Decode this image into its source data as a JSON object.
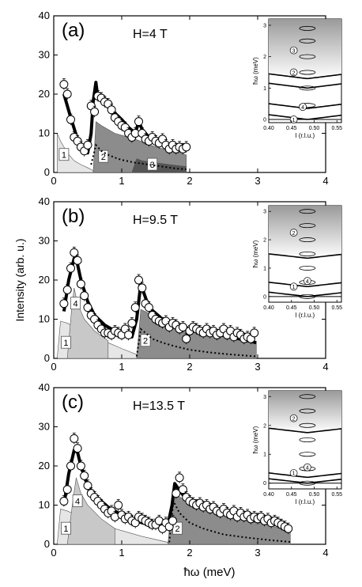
{
  "figure": {
    "xlabel": "ħω (meV)",
    "ylabel": "Intensity (arb. u.)"
  },
  "chart_data": [
    {
      "type": "scatter",
      "panel": "(a)",
      "field_label": "H=4 T",
      "xlabel": "ħω (meV)",
      "ylabel": "Intensity (arb. u.)",
      "xlim": [
        0,
        4
      ],
      "ylim": [
        0,
        40
      ],
      "xticks": [
        "0",
        "1",
        "2",
        "3",
        "4"
      ],
      "yticks": [
        "0",
        "10",
        "20",
        "30",
        "40"
      ],
      "data_points": {
        "x": [
          0.15,
          0.2,
          0.25,
          0.3,
          0.35,
          0.4,
          0.45,
          0.5,
          0.55,
          0.6,
          0.65,
          0.7,
          0.75,
          0.8,
          0.85,
          0.9,
          0.95,
          1.0,
          1.05,
          1.1,
          1.15,
          1.2,
          1.25,
          1.3,
          1.35,
          1.4,
          1.45,
          1.5,
          1.55,
          1.6,
          1.65,
          1.7,
          1.75,
          1.8,
          1.85,
          1.9,
          1.95
        ],
        "y": [
          22.5,
          20.0,
          13.5,
          9.0,
          8.0,
          6.5,
          5.5,
          7.0,
          17.0,
          15.5,
          19.5,
          19.0,
          18.0,
          17.5,
          16.0,
          14.0,
          13.0,
          12.0,
          11.5,
          10.0,
          9.0,
          10.0,
          13.0,
          10.0,
          8.5,
          8.0,
          9.0,
          8.0,
          7.5,
          8.5,
          7.0,
          6.0,
          7.0,
          6.0,
          6.5,
          6.0,
          6.5
        ]
      },
      "fit_curve": {
        "x": [
          0.15,
          0.25,
          0.35,
          0.45,
          0.5,
          0.55,
          0.58,
          0.62,
          0.65,
          0.75,
          0.85,
          1.0,
          1.1,
          1.2,
          1.25,
          1.3,
          1.4,
          1.55,
          1.7,
          1.85,
          1.95
        ],
        "y": [
          20.0,
          14.0,
          8.5,
          6.0,
          5.0,
          10.0,
          18.0,
          23.0,
          19.0,
          17.5,
          16.0,
          13.5,
          11.5,
          10.0,
          13.0,
          11.0,
          9.0,
          8.0,
          7.0,
          6.5,
          6.0
        ]
      },
      "dotted_curve": {
        "x": [
          0.55,
          0.62,
          0.7,
          0.8,
          0.9,
          1.0,
          1.2,
          1.4,
          1.6,
          1.8,
          1.95
        ],
        "y": [
          2.0,
          7.0,
          5.5,
          4.5,
          3.8,
          3.2,
          2.5,
          2.0,
          1.5,
          1.0,
          0.8
        ]
      },
      "bands": [
        {
          "label": "1",
          "x": [
            0.05,
            0.1,
            0.2,
            0.3,
            0.4,
            0.5,
            0.58
          ],
          "y": [
            10.0,
            8.0,
            5.0,
            3.0,
            2.0,
            1.2,
            0.5
          ],
          "color": "#e6e6e6"
        },
        {
          "label": "2",
          "x": [
            0.58,
            0.62,
            0.7,
            0.9,
            1.2,
            1.5,
            1.95
          ],
          "y": [
            0.0,
            13.0,
            12.0,
            10.0,
            8.5,
            6.5,
            4.5
          ],
          "color": "#8c8c8c"
        },
        {
          "label": "3",
          "x": [
            1.15,
            1.22,
            1.3,
            1.5,
            1.7,
            1.95
          ],
          "y": [
            0.0,
            3.5,
            3.0,
            2.5,
            2.0,
            1.5
          ],
          "color": "#555555"
        }
      ],
      "band_labels": [
        "1",
        "2",
        "3"
      ],
      "inset": {
        "xlabel": "l (r.l.u.)",
        "ylabel": "ħω (meV)",
        "xlim": [
          0.4,
          0.56
        ],
        "ylim": [
          -0.1,
          3.2
        ],
        "xticks": [
          "0.40",
          "0.45",
          "0.50",
          "0.55"
        ],
        "yticks": [
          "0",
          "1",
          "2",
          "3"
        ],
        "branches": [
          "1",
          "2",
          "3",
          "4"
        ]
      }
    },
    {
      "type": "scatter",
      "panel": "(b)",
      "field_label": "H=9.5 T",
      "xlabel": "ħω (meV)",
      "ylabel": "Intensity (arb. u.)",
      "xlim": [
        0,
        4
      ],
      "ylim": [
        0,
        40
      ],
      "xticks": [
        "0",
        "1",
        "2",
        "3",
        "4"
      ],
      "yticks": [
        "0",
        "10",
        "20",
        "30",
        "40"
      ],
      "data_points": {
        "x": [
          0.15,
          0.2,
          0.25,
          0.3,
          0.35,
          0.4,
          0.45,
          0.5,
          0.55,
          0.6,
          0.65,
          0.7,
          0.75,
          0.8,
          0.85,
          0.9,
          0.95,
          1.0,
          1.05,
          1.1,
          1.15,
          1.2,
          1.25,
          1.3,
          1.35,
          1.4,
          1.45,
          1.5,
          1.55,
          1.6,
          1.65,
          1.7,
          1.75,
          1.8,
          1.85,
          1.9,
          1.95,
          2.0,
          2.05,
          2.1,
          2.15,
          2.2,
          2.25,
          2.3,
          2.35,
          2.4,
          2.45,
          2.5,
          2.55,
          2.6,
          2.65,
          2.7,
          2.75,
          2.8,
          2.85,
          2.9,
          2.95
        ],
        "y": [
          14.0,
          17.5,
          23.0,
          27.0,
          25.0,
          19.0,
          16.0,
          13.0,
          11.0,
          10.0,
          8.5,
          7.5,
          6.5,
          6.5,
          6.0,
          7.0,
          6.5,
          6.0,
          7.5,
          6.0,
          9.0,
          13.0,
          20.0,
          18.0,
          14.0,
          13.0,
          11.0,
          10.0,
          9.5,
          9.0,
          9.5,
          8.0,
          9.0,
          8.5,
          7.5,
          8.0,
          5.0,
          7.0,
          8.0,
          7.5,
          7.0,
          6.5,
          7.5,
          6.5,
          7.0,
          6.0,
          6.5,
          7.5,
          6.0,
          7.0,
          5.5,
          6.5,
          6.0,
          5.0,
          5.5,
          5.0,
          6.5
        ]
      },
      "fit_curve": {
        "x": [
          0.15,
          0.22,
          0.3,
          0.35,
          0.4,
          0.5,
          0.6,
          0.75,
          0.9,
          1.05,
          1.15,
          1.22,
          1.28,
          1.32,
          1.4,
          1.6,
          1.8,
          2.0,
          2.3,
          2.6,
          2.98
        ],
        "y": [
          12.0,
          20.0,
          25.5,
          24.0,
          20.0,
          14.5,
          11.0,
          8.5,
          7.0,
          6.0,
          5.5,
          10.0,
          19.0,
          17.0,
          13.0,
          10.0,
          8.5,
          7.5,
          6.5,
          5.5,
          4.0
        ]
      },
      "dotted_curve": {
        "x": [
          1.22,
          1.28,
          1.35,
          1.45,
          1.6,
          1.8,
          2.0,
          2.3,
          2.6,
          2.98
        ],
        "y": [
          0.5,
          7.5,
          6.5,
          5.0,
          4.0,
          3.0,
          2.2,
          1.5,
          1.0,
          0.5
        ]
      },
      "bands": [
        {
          "label": "1",
          "x": [
            0.05,
            0.1,
            0.2,
            0.4,
            0.6,
            0.8,
            1.0,
            1.22
          ],
          "y": [
            0.0,
            9.5,
            9.0,
            7.0,
            5.5,
            4.0,
            2.5,
            1.0
          ],
          "color": "#e6e6e6"
        },
        {
          "label": "4",
          "x": [
            0.2,
            0.26,
            0.3,
            0.35,
            0.45,
            0.6,
            0.8
          ],
          "y": [
            0.0,
            12.0,
            18.0,
            14.0,
            10.0,
            7.0,
            4.5
          ],
          "color": "#c8c8c8"
        },
        {
          "label": "2",
          "x": [
            1.22,
            1.28,
            1.4,
            1.6,
            2.0,
            2.5,
            2.98
          ],
          "y": [
            0.0,
            12.5,
            11.5,
            10.0,
            8.0,
            6.0,
            4.0
          ],
          "color": "#8c8c8c"
        }
      ],
      "band_labels": [
        "1",
        "4",
        "2"
      ],
      "inset": {
        "xlabel": "l (r.l.u.)",
        "ylabel": "ħω (meV)",
        "xlim": [
          0.4,
          0.56
        ],
        "ylim": [
          -0.2,
          3.2
        ],
        "xticks": [
          "0.40",
          "0.45",
          "0.50",
          "0.55"
        ],
        "yticks": [
          "0",
          "1",
          "2",
          "3"
        ],
        "branches": [
          "1",
          "2",
          "4"
        ]
      }
    },
    {
      "type": "scatter",
      "panel": "(c)",
      "field_label": "H=13.5 T",
      "xlabel": "ħω (meV)",
      "ylabel": "Intensity (arb. u.)",
      "xlim": [
        0,
        4
      ],
      "ylim": [
        0,
        40
      ],
      "xticks": [
        "0",
        "1",
        "2",
        "3",
        "4"
      ],
      "yticks": [
        "0",
        "10",
        "20",
        "30",
        "40"
      ],
      "data_points": {
        "x": [
          0.15,
          0.2,
          0.25,
          0.3,
          0.35,
          0.4,
          0.45,
          0.5,
          0.55,
          0.6,
          0.65,
          0.7,
          0.75,
          0.8,
          0.85,
          0.9,
          0.95,
          1.0,
          1.05,
          1.1,
          1.15,
          1.2,
          1.25,
          1.3,
          1.35,
          1.4,
          1.45,
          1.5,
          1.55,
          1.6,
          1.65,
          1.7,
          1.75,
          1.8,
          1.85,
          1.9,
          1.95,
          2.0,
          2.05,
          2.1,
          2.15,
          2.2,
          2.25,
          2.3,
          2.35,
          2.4,
          2.45,
          2.5,
          2.55,
          2.6,
          2.65,
          2.7,
          2.75,
          2.8,
          2.85,
          2.9,
          2.95,
          3.0,
          3.05,
          3.1,
          3.15,
          3.2,
          3.25,
          3.3,
          3.35,
          3.4,
          3.45
        ],
        "y": [
          11.0,
          14.0,
          20.0,
          27.0,
          24.5,
          20.0,
          17.5,
          15.0,
          13.0,
          12.0,
          11.0,
          10.0,
          9.0,
          8.0,
          8.5,
          7.0,
          10.0,
          7.5,
          6.5,
          7.0,
          6.0,
          5.5,
          7.0,
          6.5,
          6.0,
          5.5,
          5.0,
          5.0,
          6.0,
          4.0,
          5.5,
          4.5,
          6.0,
          13.0,
          17.0,
          14.0,
          12.0,
          11.0,
          10.5,
          10.0,
          10.5,
          9.5,
          10.0,
          9.0,
          9.5,
          8.5,
          8.0,
          9.0,
          8.0,
          7.5,
          8.5,
          7.0,
          8.0,
          7.0,
          7.5,
          6.5,
          7.0,
          6.5,
          7.0,
          6.0,
          6.5,
          5.5,
          6.0,
          5.5,
          5.0,
          4.5,
          4.0
        ]
      },
      "fit_curve": {
        "x": [
          0.15,
          0.22,
          0.3,
          0.35,
          0.4,
          0.5,
          0.6,
          0.8,
          1.0,
          1.2,
          1.4,
          1.6,
          1.68,
          1.74,
          1.78,
          1.84,
          1.95,
          2.2,
          2.6,
          3.0,
          3.48
        ],
        "y": [
          10.0,
          18.0,
          24.0,
          23.5,
          20.0,
          15.0,
          12.5,
          9.5,
          7.5,
          6.0,
          5.0,
          4.5,
          5.0,
          10.0,
          15.5,
          14.0,
          11.5,
          9.5,
          7.5,
          6.0,
          4.5
        ]
      },
      "dotted_curve": {
        "x": [
          1.7,
          1.76,
          1.85,
          2.0,
          2.2,
          2.5,
          2.8,
          3.1,
          3.48
        ],
        "y": [
          0.5,
          11.0,
          8.0,
          5.5,
          4.0,
          2.5,
          1.8,
          1.2,
          0.6
        ]
      },
      "bands": [
        {
          "label": "1",
          "x": [
            0.05,
            0.1,
            0.2,
            0.4,
            0.7,
            1.0,
            1.3,
            1.68
          ],
          "y": [
            0.0,
            9.0,
            8.5,
            7.0,
            5.0,
            3.5,
            2.0,
            0.5
          ],
          "color": "#e6e6e6"
        },
        {
          "label": "4",
          "x": [
            0.2,
            0.28,
            0.33,
            0.4,
            0.5,
            0.7,
            0.9
          ],
          "y": [
            0.0,
            11.0,
            17.0,
            13.0,
            10.0,
            6.5,
            4.0
          ],
          "color": "#c8c8c8"
        },
        {
          "label": "2",
          "x": [
            1.68,
            1.75,
            1.9,
            2.2,
            2.6,
            3.0,
            3.48
          ],
          "y": [
            0.0,
            13.5,
            11.5,
            9.5,
            7.5,
            5.5,
            3.5
          ],
          "color": "#8c8c8c"
        }
      ],
      "band_labels": [
        "1",
        "4",
        "2"
      ],
      "inset": {
        "xlabel": "l (r.l.u.)",
        "ylabel": "ħω (meV)",
        "xlim": [
          0.4,
          0.56
        ],
        "ylim": [
          -0.2,
          3.2
        ],
        "xticks": [
          "0.40",
          "0.45",
          "0.50",
          "0.55"
        ],
        "yticks": [
          "0",
          "1",
          "2",
          "3"
        ],
        "branches": [
          "1",
          "2",
          "4"
        ]
      }
    }
  ]
}
